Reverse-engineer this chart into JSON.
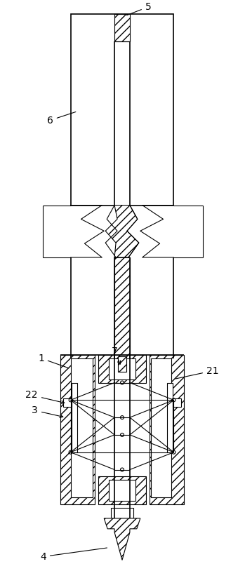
{
  "bg_color": "#ffffff",
  "line_color": "#000000",
  "fig_width": 3.49,
  "fig_height": 8.24,
  "dpi": 100
}
